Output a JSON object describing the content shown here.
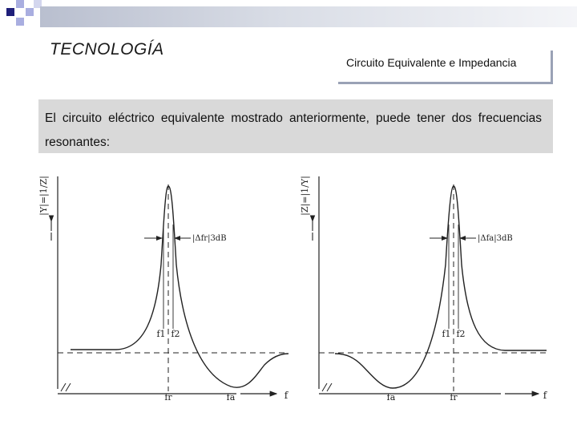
{
  "header": {
    "title": "TECNOLOGÍA",
    "subtitle": "Circuito Equivalente e Impedancia"
  },
  "content": {
    "paragraph": "El circuito eléctrico equivalente mostrado anteriormente, puede tener dos frecuencias resonantes:"
  },
  "diagram": {
    "left_plot": {
      "ylabel": "|Y|=|1/Z|",
      "bandwidth_label": "|Δfr|3dB",
      "peak_labels": [
        "f1",
        "f2"
      ],
      "x_ticks": [
        "fr",
        "fa"
      ],
      "x_axis_label": "f"
    },
    "right_plot": {
      "ylabel": "|Z|=|1/Y|",
      "bandwidth_label": "|Δfa|3dB",
      "peak_labels": [
        "f1",
        "f2"
      ],
      "x_ticks": [
        "fa",
        "fr"
      ],
      "x_axis_label": "f"
    }
  },
  "colors": {
    "accent_dark": "#1f1f7a",
    "accent_light": "#a9aee0",
    "header_band": "#c7ccd9",
    "text_box": "#d9d9d9"
  }
}
